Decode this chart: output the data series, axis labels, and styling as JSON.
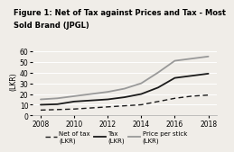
{
  "title_line1": "Figure 1: Net of Tax against Prices and Tax - Most",
  "title_line2": "Sold Brand (JPGL)",
  "years": [
    2008,
    2009,
    2010,
    2011,
    2012,
    2013,
    2014,
    2015,
    2016,
    2017,
    2018
  ],
  "net_of_tax": [
    5,
    5.5,
    6,
    7,
    8,
    9,
    10,
    13,
    16,
    18,
    19
  ],
  "tax": [
    10,
    10.5,
    13,
    14,
    15,
    17,
    20,
    26,
    35,
    37,
    39
  ],
  "price_per_stick": [
    15,
    16,
    18,
    20,
    22,
    25,
    30,
    40,
    51,
    53,
    55
  ],
  "ylabel": "(LKR)",
  "ylim": [
    0,
    65
  ],
  "yticks": [
    0,
    10,
    20,
    30,
    40,
    50,
    60
  ],
  "xticks": [
    2008,
    2010,
    2012,
    2014,
    2016,
    2018
  ],
  "tax_color": "#1a1a1a",
  "price_color": "#999999",
  "net_color": "#1a1a1a",
  "bg_color": "#f0ede8",
  "title_fontsize": 6.0,
  "axis_fontsize": 5.5,
  "tick_fontsize": 5.5,
  "legend_fontsize": 5.0
}
